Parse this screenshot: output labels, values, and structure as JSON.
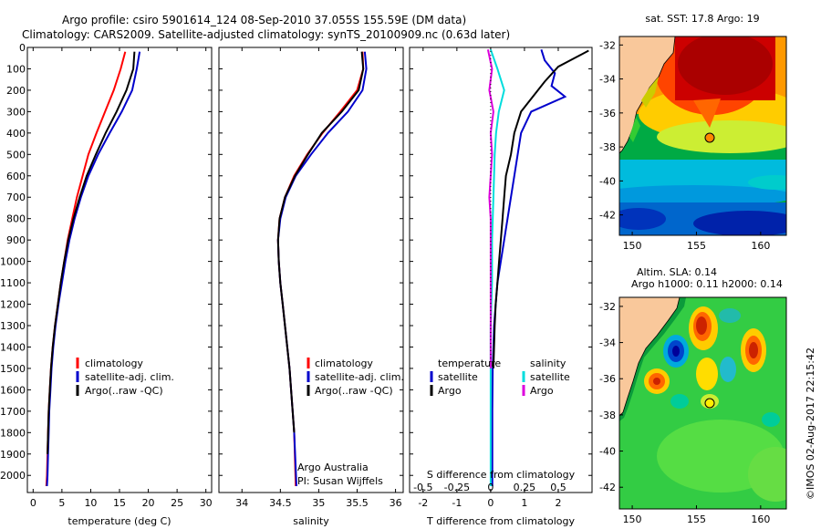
{
  "header": {
    "line1": "Argo profile: csiro 5901614_124 08-Sep-2010 37.055S 155.59E (DM data)",
    "line2": "Climatology: CARS2009. Satellite-adjusted climatology: synTS_20100909.nc (0.63d later)"
  },
  "colors": {
    "climatology": "#ff0000",
    "satellite": "#0000cc",
    "argo": "#000000",
    "sal_satellite": "#00dddd",
    "sal_argo": "#dd00dd"
  },
  "chart_data": [
    {
      "type": "line",
      "name": "temperature-profile",
      "xlabel": "temperature (deg C)",
      "ylabel": "",
      "xlim": [
        -1,
        31
      ],
      "ylim": [
        2080,
        0
      ],
      "xticks": [
        0,
        5,
        10,
        15,
        20,
        25,
        30
      ],
      "yticks": [
        0,
        100,
        200,
        300,
        400,
        500,
        600,
        700,
        800,
        900,
        1000,
        1100,
        1200,
        1300,
        1400,
        1500,
        1600,
        1700,
        1800,
        1900,
        2000
      ],
      "legend": [
        "climatology",
        "satellite-adj. clim.",
        "Argo(..raw -QC)"
      ],
      "series": [
        {
          "name": "climatology",
          "color": "#ff0000",
          "x": [
            16.0,
            15.2,
            14.0,
            12.5,
            11.0,
            9.6,
            8.6,
            7.6,
            6.8,
            6.0,
            5.4,
            4.8,
            4.3,
            3.8,
            3.4,
            3.1,
            2.9,
            2.7,
            2.6,
            2.5,
            2.4,
            2.3
          ],
          "y": [
            20,
            100,
            200,
            300,
            400,
            500,
            600,
            700,
            800,
            900,
            1000,
            1100,
            1200,
            1300,
            1400,
            1500,
            1600,
            1700,
            1800,
            1900,
            2000,
            2050
          ]
        },
        {
          "name": "satellite-adj. clim.",
          "color": "#0000cc",
          "x": [
            18.5,
            18.0,
            17.2,
            15.4,
            13.3,
            11.3,
            9.6,
            8.3,
            7.2,
            6.3,
            5.6,
            5.0,
            4.4,
            3.9,
            3.5,
            3.2,
            3.0,
            2.8,
            2.7,
            2.6,
            2.5,
            2.4
          ],
          "y": [
            20,
            100,
            200,
            300,
            400,
            500,
            600,
            700,
            800,
            900,
            1000,
            1100,
            1200,
            1300,
            1400,
            1500,
            1600,
            1700,
            1800,
            1900,
            2000,
            2050
          ]
        },
        {
          "name": "Argo(..raw -QC)",
          "color": "#000000",
          "x": [
            17.6,
            17.4,
            16.2,
            14.5,
            12.6,
            10.9,
            9.3,
            8.1,
            7.0,
            6.1,
            5.4,
            4.8,
            4.3,
            3.8,
            3.4,
            3.1,
            2.9,
            2.7,
            2.6,
            2.5
          ],
          "y": [
            20,
            100,
            200,
            300,
            400,
            500,
            600,
            700,
            800,
            900,
            1000,
            1100,
            1200,
            1300,
            1400,
            1500,
            1600,
            1700,
            1800,
            1900
          ]
        }
      ]
    },
    {
      "type": "line",
      "name": "salinity-profile",
      "xlabel": "salinity",
      "ylabel": "",
      "xlim": [
        33.7,
        36.1
      ],
      "ylim": [
        2080,
        0
      ],
      "xticks": [
        34,
        34.5,
        35,
        35.5,
        36
      ],
      "legend": [
        "climatology",
        "satellite-adj. clim.",
        "Argo(..raw -QC)"
      ],
      "annotations": [
        "Argo Australia",
        "PI: Susan Wijffels"
      ],
      "series": [
        {
          "name": "climatology",
          "color": "#ff0000",
          "x": [
            35.57,
            35.58,
            35.5,
            35.28,
            35.05,
            34.85,
            34.68,
            34.56,
            34.49,
            34.47,
            34.48,
            34.5,
            34.53,
            34.56,
            34.59,
            34.62,
            34.64,
            34.66,
            34.68,
            34.7
          ],
          "y": [
            20,
            100,
            200,
            300,
            400,
            500,
            600,
            700,
            800,
            900,
            1000,
            1100,
            1200,
            1300,
            1400,
            1500,
            1600,
            1700,
            1800,
            2050
          ]
        },
        {
          "name": "satellite-adj. clim.",
          "color": "#0000cc",
          "x": [
            35.6,
            35.62,
            35.57,
            35.38,
            35.12,
            34.9,
            34.7,
            34.57,
            34.5,
            34.47,
            34.48,
            34.5,
            34.53,
            34.56,
            34.59,
            34.62,
            34.64,
            34.66,
            34.68,
            34.71
          ],
          "y": [
            20,
            100,
            200,
            300,
            400,
            500,
            600,
            700,
            800,
            900,
            1000,
            1100,
            1200,
            1300,
            1400,
            1500,
            1600,
            1700,
            1800,
            2050
          ]
        },
        {
          "name": "Argo(..raw -QC)",
          "color": "#000000",
          "x": [
            35.56,
            35.58,
            35.52,
            35.3,
            35.04,
            34.86,
            34.69,
            34.56,
            34.49,
            34.47,
            34.48,
            34.5,
            34.53,
            34.56,
            34.59,
            34.62,
            34.64,
            34.66,
            34.68
          ],
          "y": [
            20,
            100,
            200,
            300,
            400,
            500,
            600,
            700,
            800,
            900,
            1000,
            1100,
            1200,
            1300,
            1400,
            1500,
            1600,
            1700,
            1800
          ]
        }
      ]
    },
    {
      "type": "line",
      "name": "difference-profile",
      "xlabel": "T difference from climatology",
      "x2label": "S difference from climatology",
      "ylabel": "",
      "xlim": [
        -2.4,
        3.0
      ],
      "ylim": [
        2080,
        0
      ],
      "xticks": [
        -2,
        -1,
        0,
        1,
        2
      ],
      "x2lim": [
        -0.6,
        0.75
      ],
      "x2ticks": [
        -0.5,
        -0.25,
        0,
        0.25,
        0.5
      ],
      "x2ticklabels": [
        "-0.5",
        "-0.25",
        "0",
        "0.25",
        "0.5"
      ],
      "legend": {
        "temperature": {
          "title": "temperature",
          "items": [
            "satellite",
            "Argo"
          ]
        },
        "salinity": {
          "title": "salinity",
          "items": [
            "satellite",
            "Argo"
          ]
        }
      },
      "series": [
        {
          "name": "temperature satellite",
          "color": "#0000cc",
          "axis": "T",
          "x": [
            1.5,
            1.6,
            1.9,
            1.8,
            2.2,
            1.2,
            0.9,
            0.8,
            0.7,
            0.6,
            0.5,
            0.4,
            0.3,
            0.2,
            0.15,
            0.1,
            0.08,
            0.06,
            0.05,
            0.05
          ],
          "y": [
            10,
            60,
            120,
            180,
            230,
            300,
            400,
            500,
            600,
            700,
            800,
            900,
            1000,
            1100,
            1200,
            1300,
            1400,
            1500,
            1700,
            2050
          ]
        },
        {
          "name": "temperature Argo",
          "color": "#000000",
          "axis": "T",
          "x": [
            2.9,
            2.6,
            2.0,
            1.6,
            0.9,
            0.7,
            0.6,
            0.45,
            0.4,
            0.35,
            0.3,
            0.25,
            0.2,
            0.15,
            0.12,
            0.1,
            0.08
          ],
          "y": [
            15,
            40,
            90,
            160,
            300,
            400,
            500,
            600,
            700,
            800,
            900,
            1000,
            1100,
            1200,
            1300,
            1400,
            1500
          ]
        },
        {
          "name": "salinity satellite",
          "color": "#00dddd",
          "axis": "S",
          "x": [
            0.0,
            0.05,
            0.1,
            0.06,
            0.04,
            0.03,
            0.02,
            0.01,
            0.01,
            0.0,
            0.0,
            0.0
          ],
          "y": [
            10,
            100,
            200,
            300,
            400,
            500,
            700,
            900,
            1100,
            1300,
            1500,
            2050
          ]
        },
        {
          "name": "salinity Argo",
          "color": "#dd00dd",
          "axis": "S",
          "x": [
            -0.02,
            0.01,
            -0.01,
            0.02,
            0.0,
            0.01,
            0.0,
            -0.01,
            0.0,
            0.0,
            0.0,
            0.0,
            0.0
          ],
          "y": [
            10,
            100,
            200,
            300,
            400,
            500,
            600,
            700,
            800,
            900,
            1100,
            1300,
            1500
          ]
        }
      ]
    },
    {
      "type": "heatmap",
      "name": "sst-map",
      "title": "sat. SST: 17.8 Argo: 19",
      "xlim": [
        149,
        162
      ],
      "ylim": [
        -43.2,
        -31.5
      ],
      "xticks": [
        150,
        155,
        160
      ],
      "yticks": [
        -32,
        -34,
        -36,
        -38,
        -40,
        -42
      ],
      "argo_position": {
        "lon": 155.59,
        "lat": -37.055
      }
    },
    {
      "type": "heatmap",
      "name": "sla-map",
      "title": "Altim. SLA: 0.14",
      "subtitle": "Argo h1000: 0.11 h2000: 0.14",
      "xlim": [
        149,
        162
      ],
      "ylim": [
        -43.2,
        -31.5
      ],
      "xticks": [
        150,
        155,
        160
      ],
      "yticks": [
        -32,
        -34,
        -36,
        -38,
        -40,
        -42
      ],
      "argo_position": {
        "lon": 155.59,
        "lat": -37.055
      }
    }
  ],
  "credit": "©IMOS 02-Aug-2017 22:15:42"
}
